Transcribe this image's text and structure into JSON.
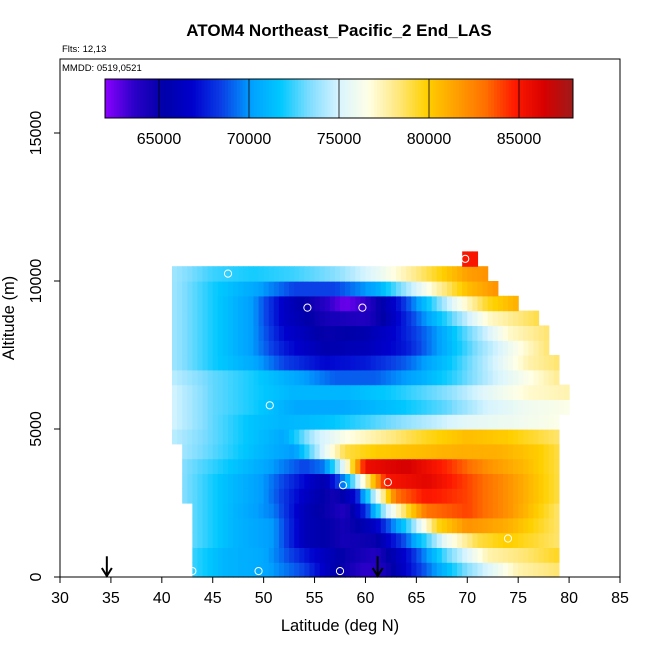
{
  "header": {
    "title": "ATOM4 Northeast_Pacific_2 End_LAS",
    "flights_text": "Flts: 12,13",
    "dates_text": "MMDD: 0519,0521"
  },
  "chart_data": {
    "type": "heatmap",
    "title": "ATOM4 Northeast_Pacific_2 End_LAS",
    "xlabel": "Latitude (deg N)",
    "ylabel": "Altitude (m)",
    "xlim": [
      30,
      85
    ],
    "ylim": [
      0,
      17500
    ],
    "x_ticks": [
      30,
      35,
      40,
      45,
      50,
      55,
      60,
      65,
      70,
      75,
      80,
      85
    ],
    "y_ticks": [
      0,
      5000,
      10000,
      15000
    ],
    "grid": false,
    "colorbar": {
      "placement": "top",
      "range": [
        62000,
        88000
      ],
      "ticks": [
        65000,
        70000,
        75000,
        80000,
        85000
      ],
      "palette": [
        "#8b00ff",
        "#2a00c8",
        "#0000a8",
        "#0000cd",
        "#0a40e6",
        "#00a0ff",
        "#00c8ff",
        "#80ddff",
        "#d8f4ff",
        "#ffffe6",
        "#ffe880",
        "#ffd000",
        "#ffa000",
        "#ff7000",
        "#ff1a00",
        "#d80000",
        "#9e1a1a"
      ]
    },
    "field_latitude_range": [
      41,
      80
    ],
    "field_altitude_range": [
      0,
      10500
    ],
    "field_layers": [
      {
        "alt_bottom": 0,
        "alt_top": 500,
        "points": [
          [
            43,
            72500
          ],
          [
            46,
            71000
          ],
          [
            50,
            70500
          ],
          [
            54,
            68500
          ],
          [
            57,
            65500
          ],
          [
            60,
            63500
          ],
          [
            62,
            64500
          ],
          [
            65,
            68000
          ],
          [
            70,
            73500
          ],
          [
            75,
            77500
          ],
          [
            79,
            78500
          ]
        ]
      },
      {
        "alt_bottom": 500,
        "alt_top": 1000,
        "points": [
          [
            43,
            72500
          ],
          [
            46,
            71000
          ],
          [
            50,
            70500
          ],
          [
            54,
            67500
          ],
          [
            58,
            65000
          ],
          [
            61,
            64000
          ],
          [
            64,
            67000
          ],
          [
            68,
            73000
          ],
          [
            72,
            77500
          ],
          [
            76,
            78500
          ],
          [
            79,
            79500
          ]
        ]
      },
      {
        "alt_bottom": 1000,
        "alt_top": 1500,
        "points": [
          [
            43,
            73000
          ],
          [
            47,
            71000
          ],
          [
            51,
            70000
          ],
          [
            54,
            66000
          ],
          [
            58,
            64500
          ],
          [
            61,
            65000
          ],
          [
            64,
            69000
          ],
          [
            68,
            76000
          ],
          [
            71,
            79000
          ],
          [
            74,
            80000
          ],
          [
            79,
            78500
          ]
        ]
      },
      {
        "alt_bottom": 1500,
        "alt_top": 2000,
        "points": [
          [
            43,
            73000
          ],
          [
            47,
            71000
          ],
          [
            51,
            70000
          ],
          [
            54,
            66000
          ],
          [
            58,
            64500
          ],
          [
            61,
            66500
          ],
          [
            64,
            72000
          ],
          [
            67,
            79500
          ],
          [
            70,
            82000
          ],
          [
            74,
            81000
          ],
          [
            79,
            78500
          ]
        ]
      },
      {
        "alt_bottom": 2000,
        "alt_top": 2500,
        "points": [
          [
            43,
            73000
          ],
          [
            47,
            71000
          ],
          [
            51,
            69500
          ],
          [
            54,
            66000
          ],
          [
            58,
            64000
          ],
          [
            60,
            68000
          ],
          [
            62,
            74500
          ],
          [
            64,
            79000
          ],
          [
            66,
            83000
          ],
          [
            70,
            84000
          ],
          [
            74,
            82000
          ],
          [
            79,
            78500
          ]
        ]
      },
      {
        "alt_bottom": 2500,
        "alt_top": 3000,
        "points": [
          [
            42,
            73500
          ],
          [
            46,
            71500
          ],
          [
            50,
            70000
          ],
          [
            54,
            66500
          ],
          [
            57,
            64500
          ],
          [
            59,
            67000
          ],
          [
            61,
            75000
          ],
          [
            63,
            83000
          ],
          [
            66,
            85000
          ],
          [
            70,
            84000
          ],
          [
            74,
            82000
          ],
          [
            79,
            79000
          ]
        ]
      },
      {
        "alt_bottom": 3000,
        "alt_top": 3500,
        "points": [
          [
            42,
            73500
          ],
          [
            46,
            71500
          ],
          [
            50,
            70000
          ],
          [
            54,
            67000
          ],
          [
            56,
            65500
          ],
          [
            58,
            70000
          ],
          [
            60,
            77500
          ],
          [
            62,
            85000
          ],
          [
            66,
            86000
          ],
          [
            70,
            84000
          ],
          [
            74,
            82000
          ],
          [
            79,
            79000
          ]
        ]
      },
      {
        "alt_bottom": 3500,
        "alt_top": 4000,
        "points": [
          [
            42,
            73500
          ],
          [
            46,
            72000
          ],
          [
            50,
            70500
          ],
          [
            54,
            68500
          ],
          [
            56,
            69500
          ],
          [
            58,
            76000
          ],
          [
            60,
            85500
          ],
          [
            64,
            86500
          ],
          [
            68,
            84500
          ],
          [
            72,
            82000
          ],
          [
            76,
            80500
          ],
          [
            79,
            79000
          ]
        ]
      },
      {
        "alt_bottom": 4000,
        "alt_top": 4500,
        "points": [
          [
            42,
            74000
          ],
          [
            46,
            72500
          ],
          [
            50,
            71000
          ],
          [
            53,
            70000
          ],
          [
            56,
            75500
          ],
          [
            58,
            79000
          ],
          [
            61,
            80000
          ],
          [
            65,
            80500
          ],
          [
            69,
            81000
          ],
          [
            73,
            81000
          ],
          [
            77,
            80000
          ],
          [
            79,
            79000
          ]
        ]
      },
      {
        "alt_bottom": 4500,
        "alt_top": 5000,
        "points": [
          [
            41,
            74500
          ],
          [
            45,
            73000
          ],
          [
            49,
            71500
          ],
          [
            52,
            70500
          ],
          [
            55,
            74500
          ],
          [
            58,
            76500
          ],
          [
            62,
            78000
          ],
          [
            66,
            79500
          ],
          [
            70,
            80500
          ],
          [
            74,
            80000
          ],
          [
            79,
            78500
          ]
        ]
      },
      {
        "alt_bottom": 5000,
        "alt_top": 5500,
        "points": [
          [
            41,
            75000
          ],
          [
            45,
            73000
          ],
          [
            49,
            71500
          ],
          [
            52,
            71000
          ],
          [
            56,
            71500
          ],
          [
            60,
            72500
          ],
          [
            65,
            74000
          ],
          [
            70,
            75500
          ],
          [
            75,
            76000
          ],
          [
            79,
            76500
          ]
        ]
      },
      {
        "alt_bottom": 5500,
        "alt_top": 6000,
        "points": [
          [
            41,
            75000
          ],
          [
            45,
            73000
          ],
          [
            49,
            72000
          ],
          [
            53,
            70500
          ],
          [
            58,
            70500
          ],
          [
            63,
            71500
          ],
          [
            68,
            73000
          ],
          [
            72,
            75000
          ],
          [
            76,
            76000
          ],
          [
            80,
            76500
          ]
        ]
      },
      {
        "alt_bottom": 6000,
        "alt_top": 6500,
        "points": [
          [
            41,
            75000
          ],
          [
            45,
            73000
          ],
          [
            49,
            72000
          ],
          [
            53,
            71000
          ],
          [
            58,
            71000
          ],
          [
            63,
            72000
          ],
          [
            68,
            73500
          ],
          [
            72,
            75500
          ],
          [
            76,
            77000
          ],
          [
            80,
            77500
          ]
        ]
      },
      {
        "alt_bottom": 6500,
        "alt_top": 7000,
        "points": [
          [
            41,
            74500
          ],
          [
            45,
            73000
          ],
          [
            49,
            72000
          ],
          [
            53,
            70500
          ],
          [
            57,
            69000
          ],
          [
            61,
            69000
          ],
          [
            65,
            70500
          ],
          [
            69,
            72500
          ],
          [
            73,
            75000
          ],
          [
            77,
            77000
          ],
          [
            79,
            78000
          ]
        ]
      },
      {
        "alt_bottom": 7000,
        "alt_top": 7500,
        "points": [
          [
            41,
            74000
          ],
          [
            45,
            72000
          ],
          [
            49,
            70500
          ],
          [
            52,
            68500
          ],
          [
            56,
            67000
          ],
          [
            60,
            67500
          ],
          [
            64,
            69000
          ],
          [
            68,
            71500
          ],
          [
            72,
            74500
          ],
          [
            76,
            77500
          ],
          [
            79,
            78500
          ]
        ]
      },
      {
        "alt_bottom": 7500,
        "alt_top": 8000,
        "points": [
          [
            41,
            74000
          ],
          [
            45,
            72000
          ],
          [
            49,
            70000
          ],
          [
            52,
            67500
          ],
          [
            56,
            65500
          ],
          [
            60,
            66000
          ],
          [
            64,
            67500
          ],
          [
            67,
            70000
          ],
          [
            71,
            73500
          ],
          [
            75,
            76500
          ],
          [
            78,
            78500
          ]
        ]
      },
      {
        "alt_bottom": 8000,
        "alt_top": 8500,
        "points": [
          [
            41,
            74000
          ],
          [
            45,
            72000
          ],
          [
            49,
            70000
          ],
          [
            52,
            67000
          ],
          [
            56,
            65000
          ],
          [
            60,
            65500
          ],
          [
            63,
            67000
          ],
          [
            67,
            70000
          ],
          [
            71,
            74000
          ],
          [
            74,
            77000
          ],
          [
            78,
            78500
          ]
        ]
      },
      {
        "alt_bottom": 8500,
        "alt_top": 9000,
        "points": [
          [
            41,
            74000
          ],
          [
            45,
            72000
          ],
          [
            49,
            70000
          ],
          [
            52,
            66500
          ],
          [
            56,
            64500
          ],
          [
            60,
            64000
          ],
          [
            62,
            65500
          ],
          [
            65,
            69000
          ],
          [
            69,
            73500
          ],
          [
            72,
            77000
          ],
          [
            77,
            79000
          ]
        ]
      },
      {
        "alt_bottom": 9000,
        "alt_top": 9500,
        "points": [
          [
            41,
            74000
          ],
          [
            45,
            72000
          ],
          [
            49,
            70000
          ],
          [
            52,
            66500
          ],
          [
            55,
            64500
          ],
          [
            58,
            62500
          ],
          [
            60,
            63500
          ],
          [
            63,
            67000
          ],
          [
            66,
            71500
          ],
          [
            69,
            76000
          ],
          [
            72,
            79500
          ],
          [
            75,
            81000
          ]
        ]
      },
      {
        "alt_bottom": 9500,
        "alt_top": 10000,
        "points": [
          [
            41,
            74000
          ],
          [
            45,
            72000
          ],
          [
            49,
            70500
          ],
          [
            53,
            68500
          ],
          [
            57,
            68500
          ],
          [
            61,
            70500
          ],
          [
            64,
            74000
          ],
          [
            67,
            77500
          ],
          [
            70,
            80500
          ],
          [
            73,
            82000
          ]
        ]
      },
      {
        "alt_bottom": 10000,
        "alt_top": 10500,
        "points": [
          [
            41,
            74000
          ],
          [
            45,
            72500
          ],
          [
            49,
            72000
          ],
          [
            53,
            72500
          ],
          [
            57,
            73500
          ],
          [
            61,
            75500
          ],
          [
            64,
            77500
          ],
          [
            67,
            79500
          ],
          [
            70,
            81500
          ],
          [
            72,
            82000
          ]
        ]
      },
      {
        "alt_bottom": 10500,
        "alt_top": 11000,
        "points": [
          [
            69.5,
            85000
          ],
          [
            71,
            85000
          ]
        ]
      }
    ],
    "sample_points": [
      {
        "lat": 43,
        "alt": 200
      },
      {
        "lat": 49.5,
        "alt": 200
      },
      {
        "lat": 57.5,
        "alt": 200
      },
      {
        "lat": 74,
        "alt": 1300
      },
      {
        "lat": 57.8,
        "alt": 3100
      },
      {
        "lat": 62.2,
        "alt": 3200
      },
      {
        "lat": 50.6,
        "alt": 5800
      },
      {
        "lat": 54.3,
        "alt": 9100
      },
      {
        "lat": 59.7,
        "alt": 9100
      },
      {
        "lat": 46.5,
        "alt": 10250
      },
      {
        "lat": 69.8,
        "alt": 10750
      }
    ],
    "arrows": [
      {
        "lat": 34.6,
        "alt_top": 700,
        "alt_bottom": 0
      },
      {
        "lat": 61.2,
        "alt_top": 700,
        "alt_bottom": 0
      }
    ]
  }
}
